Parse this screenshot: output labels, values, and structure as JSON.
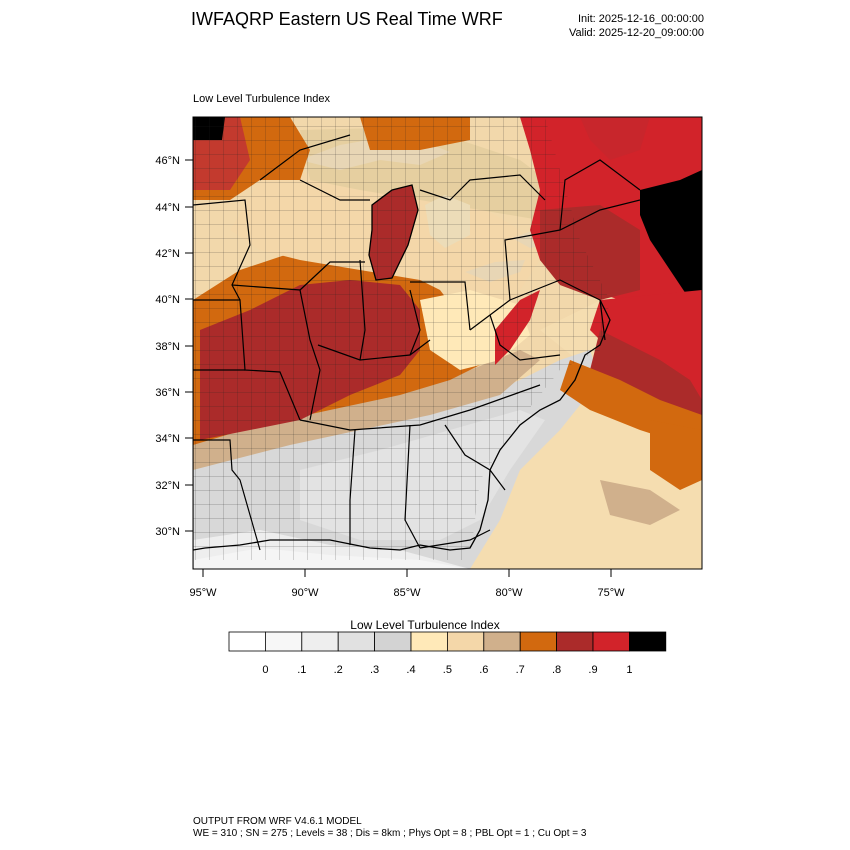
{
  "header": {
    "title": "IWFAQRP Eastern US Real Time WRF",
    "init": "Init: 2025-12-16_00:00:00",
    "valid": "Valid: 2025-12-20_09:00:00"
  },
  "plot": {
    "field_label": "Low Level Turbulence Index",
    "lat_labels": [
      "46°N",
      "44°N",
      "42°N",
      "40°N",
      "38°N",
      "36°N",
      "34°N",
      "32°N",
      "30°N"
    ],
    "lon_labels": [
      "95°W",
      "90°W",
      "85°W",
      "80°W",
      "75°W"
    ]
  },
  "colorbar": {
    "title": "Low Level Turbulence Index",
    "tick_labels": [
      "0",
      ".1",
      ".2",
      ".3",
      ".4",
      ".5",
      ".6",
      ".7",
      ".8",
      ".9",
      "1"
    ],
    "colors": [
      "#ffffff",
      "#f7f7f7",
      "#eeeeee",
      "#e1e1e1",
      "#d3d3d3",
      "#ffe9b8",
      "#f4d7a9",
      "#d0b08c",
      "#d2690f",
      "#ab2b2a",
      "#d2232a",
      "#000000"
    ]
  },
  "footer": {
    "line1": "OUTPUT FROM WRF V4.6.1 MODEL",
    "line2": "WE = 310 ; SN = 275 ; Levels = 38 ; Dis = 8km ; Phys Opt = 8 ; PBL Opt = 1 ; Cu Opt = 3"
  }
}
